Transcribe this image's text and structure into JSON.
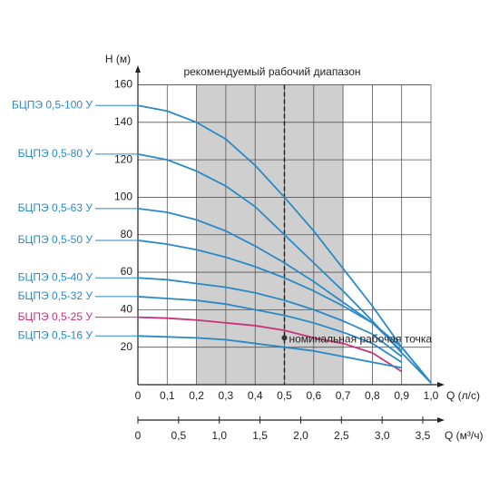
{
  "chart_data": {
    "type": "line",
    "y_label": "H (м)",
    "x_label": "Q (л/с)",
    "x2_label": "Q (м³/ч)",
    "range_label": "рекомендуемый рабочий диапазон",
    "recommended_range": [
      0.2,
      0.7
    ],
    "nominal_label": "номинальная рабочая точка",
    "nominal_point": {
      "x": 0.5,
      "y": 25
    },
    "x": [
      0,
      0.1,
      0.2,
      0.3,
      0.4,
      0.5,
      0.6,
      0.7,
      0.8,
      0.9,
      1.0
    ],
    "xlim": [
      0,
      1
    ],
    "ylim": [
      0,
      160
    ],
    "xticks": [
      0,
      {
        "value": 0.1,
        "label": "0,1"
      },
      {
        "value": 0.2,
        "label": "0,2"
      },
      {
        "value": 0.3,
        "label": "0,3"
      },
      {
        "value": 0.4,
        "label": "0,4"
      },
      {
        "value": 0.5,
        "label": "0,5"
      },
      {
        "value": 0.6,
        "label": "0,6"
      },
      {
        "value": 0.7,
        "label": "0,7"
      },
      {
        "value": 0.8,
        "label": "0,8"
      },
      {
        "value": 0.9,
        "label": "0,9"
      },
      {
        "value": 1.0,
        "label": "1,0"
      }
    ],
    "yticks": [
      20,
      40,
      60,
      80,
      100,
      120,
      140,
      160
    ],
    "x2lim": [
      0,
      3.6
    ],
    "x2ticks": [
      0,
      {
        "value": 0.5,
        "label": "0,5"
      },
      {
        "value": 1.0,
        "label": "1,0"
      },
      {
        "value": 1.5,
        "label": "1,5"
      },
      {
        "value": 2.0,
        "label": "2,0"
      },
      {
        "value": 2.5,
        "label": "2,5"
      },
      {
        "value": 3.0,
        "label": "3,0"
      },
      {
        "value": 3.5,
        "label": "3,5"
      }
    ],
    "grid": true,
    "series": [
      {
        "name": "БЦПЭ 0,5-100 У",
        "color": "#2a8ac6",
        "values": [
          149,
          146,
          140,
          131,
          117,
          100,
          82,
          62,
          42,
          20,
          1
        ]
      },
      {
        "name": "БЦПЭ 0,5-80 У",
        "color": "#2a8ac6",
        "values": [
          123,
          120,
          114,
          106,
          95,
          80,
          65,
          50,
          34,
          17,
          1
        ]
      },
      {
        "name": "БЦПЭ 0,5-63 У",
        "color": "#2a8ac6",
        "values": [
          94,
          92,
          88,
          82,
          74,
          65,
          55,
          44,
          33,
          20,
          1
        ]
      },
      {
        "name": "БЦПЭ 0,5-50 У",
        "color": "#2a8ac6",
        "values": [
          77,
          75,
          72,
          68,
          63,
          57,
          50,
          42,
          33,
          18,
          null
        ]
      },
      {
        "name": "БЦПЭ 0,5-40 У",
        "color": "#2a8ac6",
        "values": [
          57,
          56,
          54,
          52,
          49,
          45,
          40,
          34,
          27,
          15,
          null
        ]
      },
      {
        "name": "БЦПЭ 0,5-32 У",
        "color": "#2a8ac6",
        "values": [
          47,
          46,
          45,
          43,
          40,
          37,
          33,
          28,
          22,
          12,
          null
        ]
      },
      {
        "name": "БЦПЭ 0,5-25 У",
        "color": "#c8327a",
        "values": [
          36,
          35.5,
          34.5,
          33,
          31.5,
          29,
          25,
          22,
          17,
          7,
          null
        ]
      },
      {
        "name": "БЦПЭ 0,5-16 У",
        "color": "#2a8ac6",
        "values": [
          26,
          25.5,
          25,
          24,
          22,
          20,
          18,
          15,
          12,
          9,
          null
        ]
      }
    ]
  }
}
